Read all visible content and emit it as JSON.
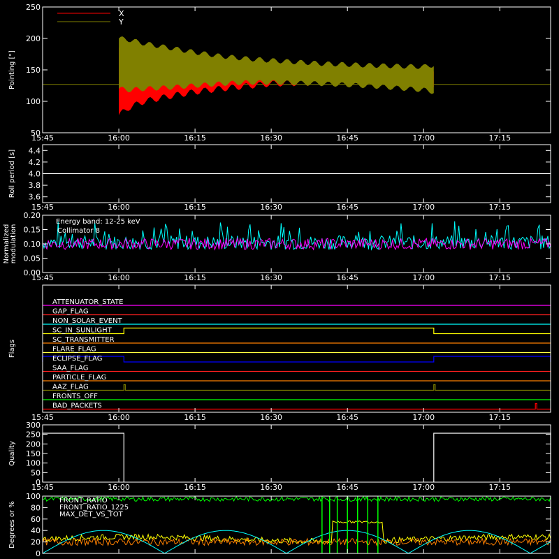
{
  "chart_data": [
    {
      "type": "area",
      "ylabel": "Pointing [\"]",
      "ylim": [
        50,
        250
      ],
      "yticks": [
        "50",
        "100",
        "150",
        "200",
        "250"
      ],
      "xticks": [
        "15:45",
        "16:00",
        "16:15",
        "16:30",
        "16:45",
        "17:00",
        "17:15"
      ],
      "xlim_minutes": [
        945,
        1045
      ],
      "legend": [
        {
          "label": "X",
          "color": "#ff0000"
        },
        {
          "label": "Y",
          "color": "#808000"
        }
      ],
      "baseline": 127,
      "series": [
        {
          "name": "X",
          "color": "#ff0000",
          "x": [
            "16:00",
            "16:02",
            "16:05",
            "16:10",
            "16:15",
            "16:20",
            "16:25",
            "16:30",
            "16:40",
            "16:50",
            "17:00",
            "17:02"
          ],
          "upper": [
            185,
            190,
            178,
            170,
            162,
            158,
            155,
            150,
            148,
            146,
            146,
            150
          ],
          "lower": [
            78,
            90,
            100,
            108,
            115,
            120,
            124,
            128,
            130,
            132,
            132,
            125
          ]
        },
        {
          "name": "Y",
          "color": "#808000",
          "x": [
            "16:00",
            "16:02",
            "16:05",
            "16:10",
            "16:15",
            "16:20",
            "16:25",
            "16:30",
            "16:40",
            "16:50",
            "17:00",
            "17:02"
          ],
          "upper": [
            200,
            198,
            192,
            185,
            178,
            172,
            168,
            165,
            160,
            157,
            155,
            158
          ],
          "lower": [
            120,
            118,
            120,
            122,
            125,
            128,
            130,
            130,
            128,
            124,
            118,
            115
          ]
        }
      ]
    },
    {
      "type": "line",
      "ylabel": "Roll period [s]",
      "ylim": [
        3.5,
        4.5
      ],
      "yticks": [
        "3.6",
        "3.8",
        "4.0",
        "4.2",
        "4.4"
      ],
      "xticks": [
        "15:45",
        "16:00",
        "16:15",
        "16:30",
        "16:45",
        "17:00",
        "17:15"
      ],
      "value": 4.0
    },
    {
      "type": "line",
      "ylabel": "Normalized modulation",
      "ylim": [
        0,
        0.2
      ],
      "yticks": [
        "0.00",
        "0.05",
        "0.10",
        "0.15",
        "0.20"
      ],
      "xticks": [
        "15:45",
        "16:00",
        "16:15",
        "16:30",
        "16:45",
        "17:00",
        "17:15"
      ],
      "annotations": [
        "Energy band: 12-25 keV",
        "Collimator 8"
      ],
      "series": [
        {
          "name": "Collimator 8",
          "color": "#00ffff",
          "mean": 0.105,
          "spread": 0.025
        },
        {
          "color": "#ff00ff",
          "mean": 0.1,
          "spread": 0.02
        }
      ]
    },
    {
      "type": "table",
      "ylabel": "Flags",
      "xticks": [
        "15:45",
        "16:00",
        "16:15",
        "16:30",
        "16:45",
        "17:00",
        "17:15"
      ],
      "flags": [
        {
          "label": "ATTENUATOR_STATE",
          "color": "#ff00ff",
          "steps": []
        },
        {
          "label": "GAP_FLAG",
          "color": "#ff2020",
          "steps": []
        },
        {
          "label": "NON_SOLAR_EVENT",
          "color": "#00ffff",
          "steps": []
        },
        {
          "label": "SC_IN_SUNLIGHT",
          "color": "#ffff00",
          "high": [
            [
              "16:01",
              "17:02"
            ]
          ]
        },
        {
          "label": "SC_TRANSMITTER",
          "color": "#ff8000",
          "steps": []
        },
        {
          "label": "FLARE_FLAG",
          "color": "#ffff40",
          "steps": []
        },
        {
          "label": "ECLIPSE_FLAG",
          "color": "#0000ff",
          "high": [
            [
              "15:45",
              "16:01"
            ],
            [
              "17:02",
              "17:25"
            ]
          ]
        },
        {
          "label": "SAA_FLAG",
          "color": "#ff2020",
          "steps": []
        },
        {
          "label": "PARTICLE_FLAG",
          "color": "#ff8000",
          "steps": []
        },
        {
          "label": "AAZ_FLAG",
          "color": "#808000",
          "high": [
            [
              "16:01",
              "16:01"
            ],
            [
              "17:02",
              "17:02"
            ]
          ]
        },
        {
          "label": "FRONTS_OFF",
          "color": "#00ff00",
          "steps": []
        },
        {
          "label": "BAD_PACKETS",
          "color": "#ff0000",
          "high": [
            [
              "17:22",
              "17:22"
            ]
          ]
        }
      ]
    },
    {
      "type": "line",
      "ylabel": "Quality",
      "ylim": [
        0,
        300
      ],
      "yticks": [
        "0",
        "50",
        "100",
        "150",
        "200",
        "250",
        "300"
      ],
      "xticks": [
        "15:45",
        "16:00",
        "16:15",
        "16:30",
        "16:45",
        "17:00",
        "17:15"
      ],
      "high_value": 256,
      "low_value": 0,
      "high_intervals": [
        [
          "15:45",
          "16:01"
        ],
        [
          "17:02",
          "17:25"
        ]
      ]
    },
    {
      "type": "line",
      "ylabel": "Degrees or %",
      "ylim": [
        0,
        100
      ],
      "yticks": [
        "0",
        "20",
        "40",
        "60",
        "80",
        "100"
      ],
      "xticks": [
        "15:45",
        "16:00",
        "16:15",
        "16:30",
        "16:45",
        "17:00",
        "17:15"
      ],
      "series": [
        {
          "name": "FRONT_RATIO",
          "color": "#ffff00",
          "mean": 25
        },
        {
          "name": "FRONT_RATIO_1225",
          "color": "#00ff00",
          "mean": 95
        },
        {
          "name": "MAX_DET_VS_TOT",
          "color": "#ff8000",
          "mean": 20
        },
        {
          "color": "#00ffff",
          "shape": "abs-sine",
          "amplitude": 40
        }
      ]
    }
  ]
}
